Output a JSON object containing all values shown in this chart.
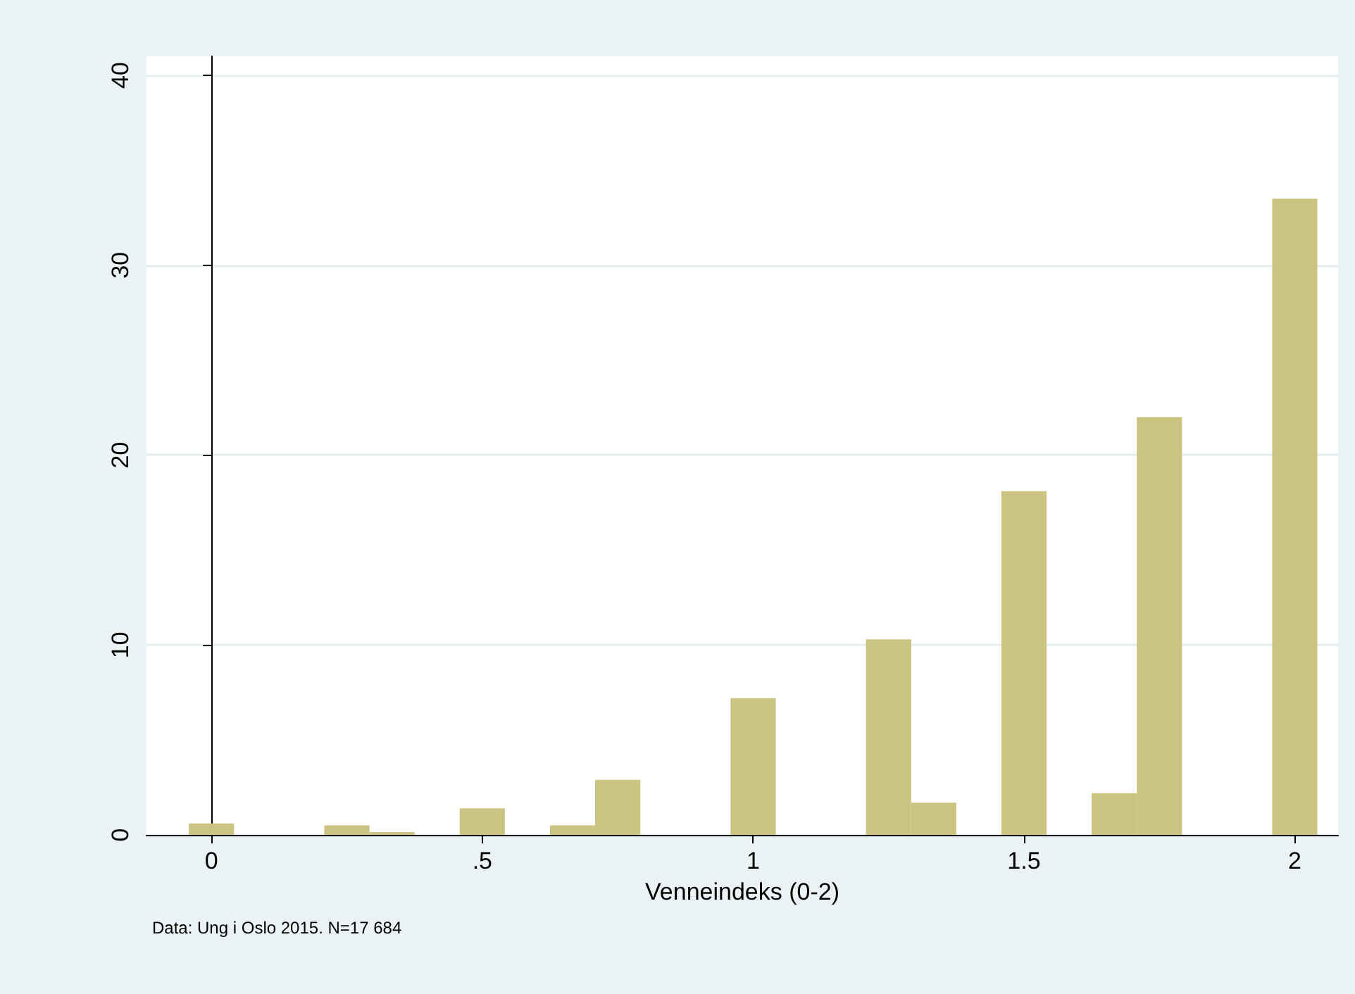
{
  "chart_data": {
    "type": "histogram",
    "xlabel": "Venneindeks (0-2)",
    "annotations": [
      "Data: Ung i Oslo 2015. N=17 684"
    ],
    "bins": [
      -0.0417,
      0.0417,
      0.125,
      0.2083,
      0.2917,
      0.375,
      0.4583,
      0.5417,
      0.625,
      0.7083,
      0.7917,
      0.875,
      0.9583,
      1.0417,
      1.125,
      1.2083,
      1.2917,
      1.375,
      1.4583,
      1.5417,
      1.625,
      1.7083,
      1.7917,
      1.875,
      1.9583,
      2.0417
    ],
    "values": [
      0.6,
      0,
      0,
      0.5,
      0.15,
      0,
      1.4,
      0,
      0.5,
      2.9,
      0,
      0,
      7.2,
      0,
      0,
      10.3,
      1.7,
      0,
      18.1,
      0,
      2.2,
      22.0,
      0,
      0,
      33.5
    ],
    "color": "#cbc380",
    "xlim": [
      -0.12,
      2.08
    ],
    "xticks": [
      0,
      {
        "value": 0.5,
        "label": ".5"
      },
      1,
      1.5,
      2
    ],
    "ylim": [
      0,
      41
    ],
    "yticks": [
      0,
      10,
      20,
      30,
      40
    ],
    "grid": "y"
  }
}
